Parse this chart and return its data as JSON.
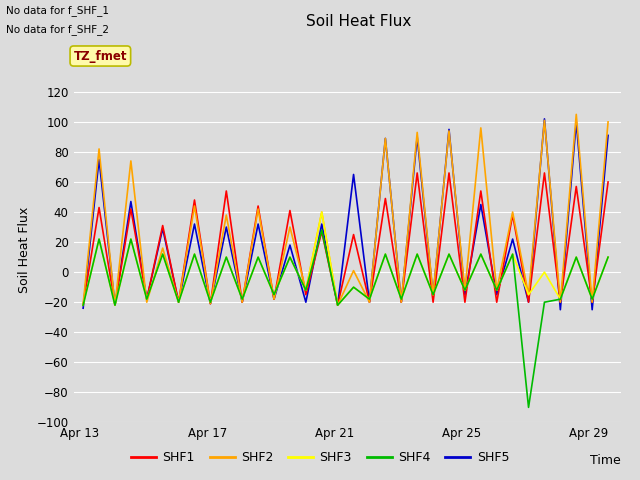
{
  "title": "Soil Heat Flux",
  "ylabel": "Soil Heat Flux",
  "xlabel": "Time",
  "annotation1": "No data for f_SHF_1",
  "annotation2": "No data for f_SHF_2",
  "tz_label": "TZ_fmet",
  "ylim": [
    -100,
    130
  ],
  "yticks": [
    -100,
    -80,
    -60,
    -40,
    -20,
    0,
    20,
    40,
    60,
    80,
    100,
    120
  ],
  "colors": {
    "SHF1": "#FF0000",
    "SHF2": "#FFA500",
    "SHF3": "#FFFF00",
    "SHF4": "#00BB00",
    "SHF5": "#0000CC"
  },
  "legend_labels": [
    "SHF1",
    "SHF2",
    "SHF3",
    "SHF4",
    "SHF5"
  ],
  "bg_color": "#DCDCDC",
  "plot_bg_color": "#DCDCDC",
  "grid_color": "#FFFFFF",
  "xtick_labels": [
    "Apr 13",
    "Apr 17",
    "Apr 21",
    "Apr 25",
    "Apr 29"
  ],
  "n_days": 17,
  "shf1_data": [
    -22,
    43,
    -22,
    42,
    -18,
    31,
    -20,
    48,
    -21,
    54,
    -20,
    44,
    -18,
    41,
    -15,
    27,
    -22,
    25,
    -20,
    49,
    -20,
    66,
    -20,
    66,
    -20,
    54,
    -20,
    38,
    -20,
    66,
    -20,
    57,
    -20,
    60
  ],
  "shf2_data": [
    -21,
    82,
    -22,
    74,
    -20,
    16,
    -20,
    44,
    -21,
    38,
    -20,
    42,
    -18,
    30,
    -12,
    40,
    -22,
    1,
    -20,
    89,
    -20,
    93,
    -15,
    94,
    -12,
    96,
    -12,
    40,
    -15,
    101,
    -20,
    105,
    -20,
    100
  ],
  "shf3_data": [
    -22,
    22,
    -22,
    22,
    -18,
    12,
    -20,
    12,
    -20,
    10,
    -18,
    10,
    -15,
    10,
    -12,
    40,
    -22,
    -10,
    -18,
    12,
    -18,
    12,
    -15,
    12,
    -12,
    12,
    -12,
    12,
    -15,
    0,
    -18,
    10,
    -18,
    10
  ],
  "shf4_data": [
    -22,
    22,
    -22,
    22,
    -18,
    12,
    -20,
    12,
    -20,
    10,
    -18,
    10,
    -15,
    10,
    -12,
    28,
    -22,
    -10,
    -18,
    12,
    -18,
    12,
    -15,
    12,
    -12,
    12,
    -12,
    12,
    -90,
    -20,
    -18,
    10,
    -18,
    10
  ],
  "shf5_data": [
    -24,
    75,
    -22,
    47,
    -18,
    29,
    -20,
    32,
    -21,
    30,
    -20,
    32,
    -18,
    18,
    -20,
    32,
    -22,
    65,
    -20,
    89,
    -20,
    90,
    -16,
    95,
    -15,
    45,
    -15,
    22,
    -20,
    102,
    -25,
    100,
    -25,
    91
  ]
}
